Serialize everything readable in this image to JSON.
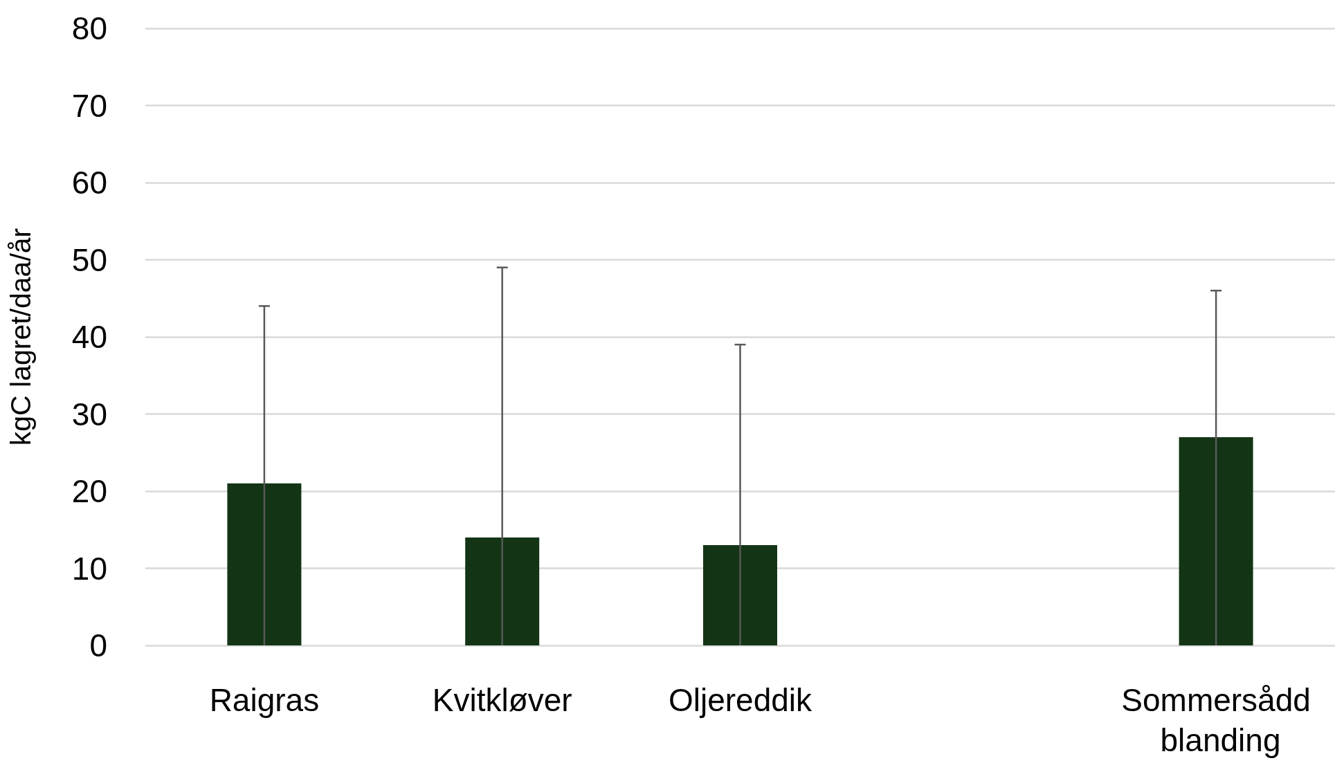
{
  "chart_data": {
    "type": "bar",
    "ylabel": "kgC lagret/daa/år",
    "categories": [
      "Raigras",
      "Kvitkløver",
      "Oljereddik",
      null,
      "Sommersådd blanding"
    ],
    "values": [
      21,
      14,
      13,
      null,
      27
    ],
    "errors": [
      [
        0,
        44
      ],
      [
        0,
        49
      ],
      [
        0,
        39
      ],
      null,
      [
        0,
        46
      ]
    ],
    "color": "#133516",
    "ylim": [
      0,
      80
    ],
    "yticks": [
      0,
      10,
      20,
      30,
      40,
      50,
      60,
      70,
      80
    ],
    "grid": "y"
  }
}
